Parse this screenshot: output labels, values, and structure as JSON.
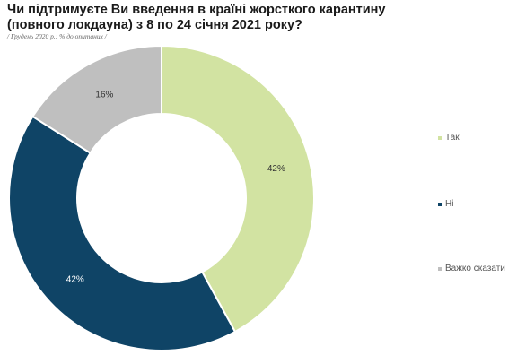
{
  "header": {
    "title_line1": "Чи підтримуєте Ви введення в країні жорсткого карантину",
    "title_line2": "(повного локдауна)  з 8 по 24 січня 2021 року?",
    "subtitle": "/ Грудень 2020 р.; % до опитаних /"
  },
  "chart_data": {
    "type": "pie",
    "subtype": "donut",
    "title": "Чи підтримуєте Ви введення в країні жорсткого карантину (повного локдауна)  з 8 по 24 січня 2021 року?",
    "subtitle": "/ Грудень 2020 р.; % до опитаних /",
    "legend_position": "right",
    "slices": [
      {
        "label": "Так",
        "value": 42,
        "display": "42%",
        "color": "#d2e3a2",
        "label_color": "#333333"
      },
      {
        "label": "Ні",
        "value": 42,
        "display": "42%",
        "color": "#0f4466",
        "label_color": "#ffffff"
      },
      {
        "label": "Важко сказати",
        "value": 16,
        "display": "16%",
        "color": "#bfbfbf",
        "label_color": "#333333"
      }
    ]
  }
}
